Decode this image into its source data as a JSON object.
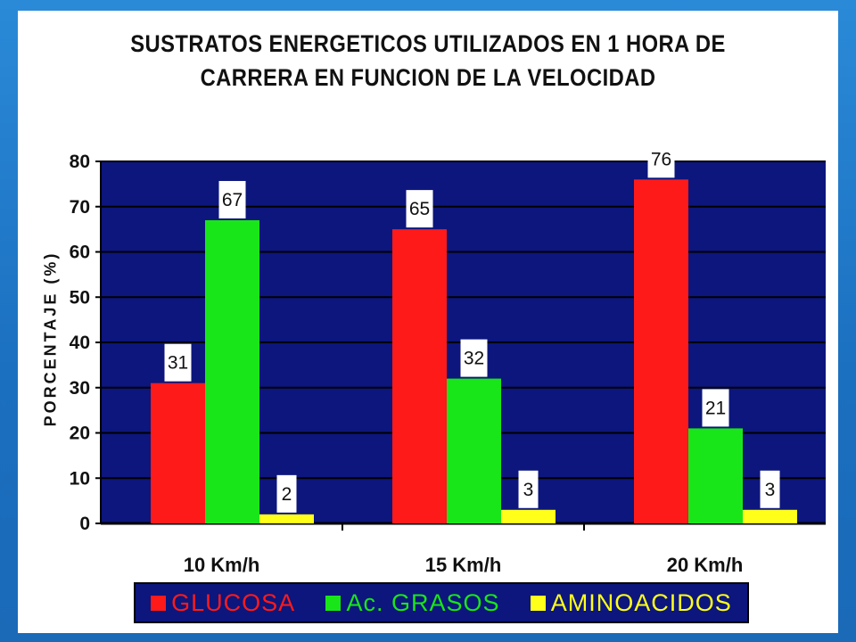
{
  "slide": {
    "title_line1": "SUSTRATOS ENERGETICOS UTILIZADOS EN 1 HORA DE",
    "title_line2": "CARRERA EN FUNCION DE LA VELOCIDAD"
  },
  "colors": {
    "plot_bg": "#0c167c",
    "glucosa": "#ff1a1a",
    "grasos": "#19e619",
    "amino": "#ffff1a"
  },
  "chart_data": {
    "type": "bar",
    "categories": [
      "10 Km/h",
      "15 Km/h",
      "20 Km/h"
    ],
    "series": [
      {
        "name": "GLUCOSA",
        "values": [
          31,
          65,
          76
        ]
      },
      {
        "name": "Ac. GRASOS",
        "values": [
          67,
          32,
          21
        ]
      },
      {
        "name": "AMINOACIDOS",
        "values": [
          2,
          3,
          3
        ]
      }
    ],
    "data_labels": [
      [
        "31",
        "65",
        "76"
      ],
      [
        "67",
        "32",
        "21"
      ],
      [
        "2",
        "3",
        "3"
      ]
    ],
    "y_ticks": [
      "0",
      "10",
      "20",
      "30",
      "40",
      "50",
      "60",
      "70",
      "80"
    ],
    "ylabel": "PORCENTAJE (%)",
    "ylim": [
      0,
      80
    ],
    "grid": true,
    "legend_position": "bottom"
  }
}
